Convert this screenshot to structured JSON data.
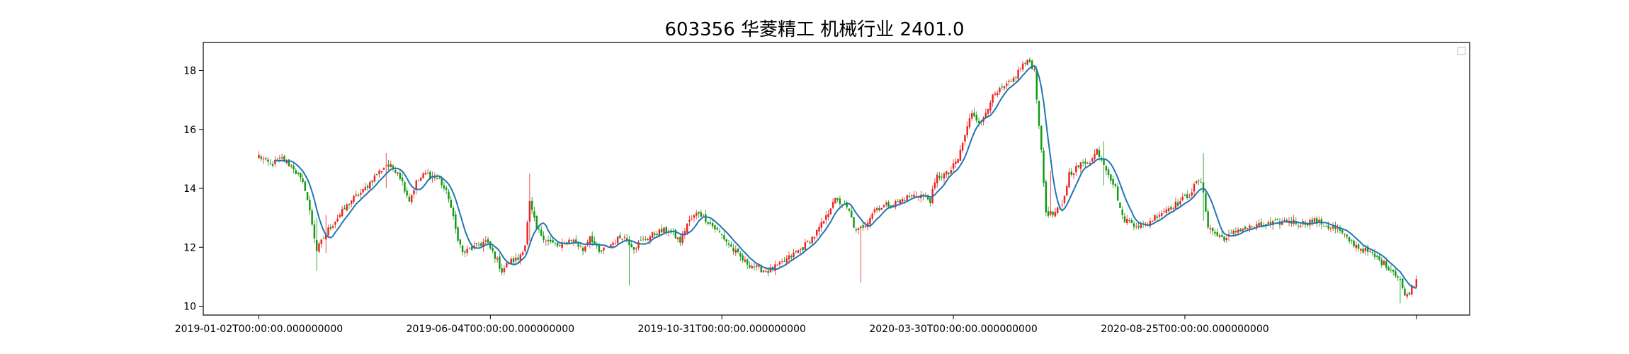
{
  "chart_data": {
    "type": "candlestick",
    "title": "603356 华菱精工 机械行业 2401.0",
    "xlabel": "",
    "ylabel": "",
    "ylim": [
      9.7,
      18.95
    ],
    "yticks": [
      10,
      12,
      14,
      16,
      18
    ],
    "xticks": [
      {
        "index": 0,
        "label": "2019-01-02T00:00:00.000000000"
      },
      {
        "index": 100,
        "label": "2019-06-04T00:00:00.000000000"
      },
      {
        "index": 200,
        "label": "2019-10-31T00:00:00.000000000"
      },
      {
        "index": 300,
        "label": "2020-03-30T00:00:00.000000000"
      },
      {
        "index": 400,
        "label": "2020-08-25T00:00:00.000000000"
      },
      {
        "index": 500,
        "label": ""
      }
    ],
    "n_candles": 501,
    "xlim": [
      -24,
      523
    ],
    "legend": "top-right",
    "up_color": "#ee2222",
    "down_color": "#119911",
    "ma_color": "#1f77b4",
    "close_anchors": [
      [
        0,
        15.1
      ],
      [
        5,
        14.8
      ],
      [
        10,
        15.0
      ],
      [
        15,
        14.7
      ],
      [
        20,
        14.0
      ],
      [
        23,
        12.8
      ],
      [
        25,
        11.9
      ],
      [
        30,
        12.6
      ],
      [
        35,
        13.1
      ],
      [
        40,
        13.6
      ],
      [
        45,
        13.9
      ],
      [
        50,
        14.4
      ],
      [
        55,
        14.8
      ],
      [
        60,
        14.6
      ],
      [
        65,
        13.6
      ],
      [
        68,
        14.2
      ],
      [
        72,
        14.5
      ],
      [
        78,
        14.3
      ],
      [
        82,
        13.7
      ],
      [
        85,
        12.6
      ],
      [
        88,
        11.8
      ],
      [
        93,
        12.0
      ],
      [
        98,
        12.2
      ],
      [
        102,
        11.7
      ],
      [
        105,
        11.2
      ],
      [
        108,
        11.5
      ],
      [
        112,
        11.6
      ],
      [
        115,
        12.1
      ],
      [
        117,
        13.5
      ],
      [
        120,
        12.6
      ],
      [
        125,
        12.2
      ],
      [
        130,
        12.0
      ],
      [
        135,
        12.3
      ],
      [
        140,
        11.9
      ],
      [
        143,
        12.4
      ],
      [
        147,
        11.8
      ],
      [
        152,
        12.1
      ],
      [
        157,
        12.4
      ],
      [
        162,
        12.0
      ],
      [
        167,
        12.3
      ],
      [
        172,
        12.5
      ],
      [
        177,
        12.6
      ],
      [
        182,
        12.2
      ],
      [
        185,
        12.8
      ],
      [
        190,
        13.2
      ],
      [
        195,
        12.8
      ],
      [
        200,
        12.4
      ],
      [
        205,
        11.9
      ],
      [
        210,
        11.5
      ],
      [
        215,
        11.3
      ],
      [
        220,
        11.2
      ],
      [
        225,
        11.4
      ],
      [
        230,
        11.7
      ],
      [
        235,
        12.0
      ],
      [
        240,
        12.4
      ],
      [
        245,
        13.0
      ],
      [
        248,
        13.6
      ],
      [
        252,
        13.5
      ],
      [
        255,
        13.2
      ],
      [
        258,
        12.5
      ],
      [
        262,
        12.8
      ],
      [
        266,
        13.3
      ],
      [
        270,
        13.4
      ],
      [
        275,
        13.5
      ],
      [
        280,
        13.7
      ],
      [
        285,
        13.8
      ],
      [
        290,
        13.6
      ],
      [
        293,
        14.4
      ],
      [
        298,
        14.5
      ],
      [
        302,
        15.0
      ],
      [
        305,
        15.8
      ],
      [
        308,
        16.6
      ],
      [
        312,
        16.2
      ],
      [
        316,
        17.0
      ],
      [
        320,
        17.3
      ],
      [
        325,
        17.6
      ],
      [
        330,
        18.2
      ],
      [
        333,
        18.3
      ],
      [
        335,
        18.0
      ],
      [
        337,
        16.2
      ],
      [
        340,
        13.2
      ],
      [
        343,
        13.1
      ],
      [
        347,
        13.4
      ],
      [
        350,
        14.5
      ],
      [
        355,
        14.8
      ],
      [
        360,
        15.0
      ],
      [
        362,
        15.3
      ],
      [
        366,
        14.7
      ],
      [
        370,
        14.0
      ],
      [
        373,
        13.0
      ],
      [
        378,
        12.8
      ],
      [
        382,
        12.7
      ],
      [
        388,
        13.1
      ],
      [
        392,
        13.3
      ],
      [
        397,
        13.5
      ],
      [
        402,
        13.8
      ],
      [
        406,
        14.3
      ],
      [
        408,
        13.9
      ],
      [
        410,
        12.7
      ],
      [
        414,
        12.4
      ],
      [
        418,
        12.3
      ],
      [
        423,
        12.6
      ],
      [
        430,
        12.7
      ],
      [
        438,
        12.8
      ],
      [
        445,
        12.9
      ],
      [
        450,
        12.8
      ],
      [
        456,
        12.9
      ],
      [
        462,
        12.7
      ],
      [
        466,
        12.6
      ],
      [
        470,
        12.3
      ],
      [
        475,
        12.0
      ],
      [
        480,
        11.8
      ],
      [
        485,
        11.5
      ],
      [
        490,
        11.2
      ],
      [
        493,
        10.9
      ],
      [
        495,
        10.3
      ],
      [
        497,
        10.5
      ],
      [
        500,
        10.9
      ]
    ],
    "spikes": [
      [
        25,
        11.2,
        13.0
      ],
      [
        29,
        11.8,
        13.1
      ],
      [
        55,
        14.0,
        15.2
      ],
      [
        117,
        12.2,
        14.5
      ],
      [
        160,
        10.7,
        12.3
      ],
      [
        260,
        10.8,
        12.6
      ],
      [
        342,
        14.3,
        14.6
      ],
      [
        365,
        14.1,
        15.6
      ],
      [
        408,
        12.9,
        15.2
      ],
      [
        493,
        10.1,
        11.0
      ]
    ]
  }
}
